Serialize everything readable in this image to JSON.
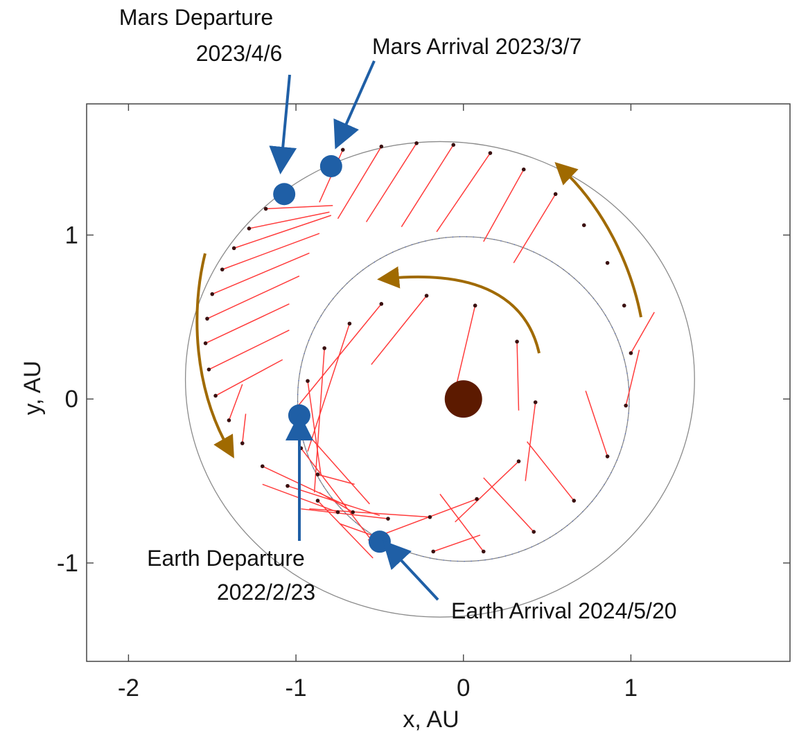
{
  "chart_data": {
    "type": "scatter",
    "title": "",
    "xlabel": "x, AU",
    "ylabel": "y, AU",
    "xlim": [
      -2.25,
      1.95
    ],
    "ylim": [
      -1.6,
      1.8
    ],
    "xticks": [
      -2,
      -1,
      0,
      1
    ],
    "yticks": [
      -1,
      0,
      1
    ],
    "xtick_labels": [
      "-2",
      "-1",
      "0",
      "1"
    ],
    "ytick_labels": [
      "-1",
      "0",
      "1"
    ],
    "grid": false,
    "sun": {
      "x": 0,
      "y": 0,
      "color": "#5c1a00"
    },
    "orbits": [
      {
        "body": "Earth",
        "center": [
          0,
          0
        ],
        "rx": 0.99,
        "ry": 0.99
      },
      {
        "body": "Mars",
        "center": [
          -0.14,
          0.12
        ],
        "rx": 1.52,
        "ry": 1.45
      }
    ],
    "positions_color": "#3a1010",
    "vectors_color": "#ff3b3b",
    "marker_color": "#1f5fa6",
    "arrow_color": "#a06a00",
    "inner_positions": [
      {
        "x": -0.93,
        "y": 0.11,
        "dx": 0.08,
        "dy": -0.58
      },
      {
        "x": -0.83,
        "y": 0.31,
        "dx": -0.06,
        "dy": -0.88
      },
      {
        "x": -0.68,
        "y": 0.46,
        "dx": -0.25,
        "dy": -0.78
      },
      {
        "x": -0.49,
        "y": 0.58,
        "dx": -0.52,
        "dy": -0.65
      },
      {
        "x": -0.22,
        "y": 0.63,
        "dx": -0.33,
        "dy": -0.42
      },
      {
        "x": 0.07,
        "y": 0.57,
        "dx": -0.12,
        "dy": -0.52
      },
      {
        "x": 0.32,
        "y": 0.35,
        "dx": 0.01,
        "dy": -0.42
      },
      {
        "x": 0.43,
        "y": -0.02,
        "dx": -0.06,
        "dy": -0.48
      },
      {
        "x": 0.33,
        "y": -0.38,
        "dx": -0.38,
        "dy": -0.37
      },
      {
        "x": 0.08,
        "y": -0.61,
        "dx": -0.65,
        "dy": -0.25
      },
      {
        "x": -0.2,
        "y": -0.72,
        "dx": -0.72,
        "dy": 0.05
      },
      {
        "x": -0.45,
        "y": -0.73,
        "dx": -0.52,
        "dy": 0.06
      },
      {
        "x": -0.66,
        "y": -0.69,
        "dx": -0.2,
        "dy": 0.12
      },
      {
        "x": -0.87,
        "y": -0.46,
        "dx": 0.22,
        "dy": -0.06
      },
      {
        "x": -0.96,
        "y": -0.18,
        "dx": 0.4,
        "dy": -0.46
      },
      {
        "x": -0.97,
        "y": -0.3,
        "dx": 0.42,
        "dy": -0.56
      },
      {
        "x": -0.87,
        "y": -0.62,
        "dx": 0.33,
        "dy": -0.35
      }
    ],
    "outer_positions": [
      {
        "x": -1.18,
        "y": 1.16,
        "dx": 0.4,
        "dy": 0.02
      },
      {
        "x": -1.28,
        "y": 1.04,
        "dx": 0.48,
        "dy": 0.1
      },
      {
        "x": -1.37,
        "y": 0.92,
        "dx": 0.58,
        "dy": 0.2
      },
      {
        "x": -1.44,
        "y": 0.79,
        "dx": 0.58,
        "dy": 0.22
      },
      {
        "x": -1.5,
        "y": 0.64,
        "dx": 0.58,
        "dy": 0.25
      },
      {
        "x": -1.53,
        "y": 0.49,
        "dx": 0.55,
        "dy": 0.26
      },
      {
        "x": -1.54,
        "y": 0.34,
        "dx": 0.5,
        "dy": 0.24
      },
      {
        "x": -1.52,
        "y": 0.18,
        "dx": 0.48,
        "dy": 0.24
      },
      {
        "x": -1.48,
        "y": 0.02,
        "dx": 0.4,
        "dy": 0.22
      },
      {
        "x": -1.4,
        "y": -0.13,
        "dx": 0.08,
        "dy": 0.22
      },
      {
        "x": -1.32,
        "y": -0.27,
        "dx": 0.02,
        "dy": 0.18
      },
      {
        "x": -1.2,
        "y": -0.41,
        "dx": 0.5,
        "dy": -0.24
      },
      {
        "x": -1.05,
        "y": -0.53,
        "dx": 0.55,
        "dy": -0.18
      },
      {
        "x": -0.72,
        "y": 1.52,
        "dx": -0.14,
        "dy": -0.32
      },
      {
        "x": -0.49,
        "y": 1.54,
        "dx": -0.26,
        "dy": -0.44
      },
      {
        "x": -0.28,
        "y": 1.56,
        "dx": -0.3,
        "dy": -0.48
      },
      {
        "x": -0.06,
        "y": 1.55,
        "dx": -0.31,
        "dy": -0.5
      },
      {
        "x": 0.16,
        "y": 1.5,
        "dx": -0.32,
        "dy": -0.48
      },
      {
        "x": 0.36,
        "y": 1.4,
        "dx": -0.24,
        "dy": -0.44
      },
      {
        "x": 0.55,
        "y": 1.25,
        "dx": -0.25,
        "dy": -0.42
      },
      {
        "x": 0.72,
        "y": 1.06,
        "dx": 0,
        "dy": 0
      },
      {
        "x": 0.86,
        "y": 0.83,
        "dx": 0,
        "dy": 0
      },
      {
        "x": 0.96,
        "y": 0.57,
        "dx": 0,
        "dy": 0
      },
      {
        "x": 1.0,
        "y": 0.28,
        "dx": 0.14,
        "dy": 0.25
      },
      {
        "x": 0.97,
        "y": -0.04,
        "dx": 0.08,
        "dy": 0.34
      },
      {
        "x": 0.86,
        "y": -0.35,
        "dx": -0.13,
        "dy": 0.4
      },
      {
        "x": 0.66,
        "y": -0.62,
        "dx": -0.28,
        "dy": 0.36
      },
      {
        "x": 0.42,
        "y": -0.81,
        "dx": -0.3,
        "dy": 0.33
      },
      {
        "x": 0.12,
        "y": -0.93,
        "dx": -0.26,
        "dy": 0.35
      },
      {
        "x": -0.18,
        "y": -0.93,
        "dx": 0.28,
        "dy": 0.1
      },
      {
        "x": -0.52,
        "y": -0.84,
        "dx": -0.22,
        "dy": 0.08
      },
      {
        "x": -0.75,
        "y": -0.69,
        "dx": -0.45,
        "dy": 0.17
      }
    ],
    "events": [
      {
        "label": "Mars Departure",
        "date": "2023/4/6",
        "x": -1.07,
        "y": 1.25
      },
      {
        "label": "Mars Arrival",
        "date": "2023/3/7",
        "x": -0.79,
        "y": 1.42
      },
      {
        "label": "Earth Departure",
        "date": "2022/2/23",
        "x": -0.98,
        "y": -0.1
      },
      {
        "label": "Earth Arrival",
        "date": "2024/5/20",
        "x": -0.5,
        "y": -0.87
      }
    ]
  },
  "annotations": {
    "mars_departure_line1": "Mars Departure",
    "mars_departure_line2": "2023/4/6",
    "mars_arrival": "Mars Arrival 2023/3/7",
    "earth_departure_line1": "Earth Departure",
    "earth_departure_line2": "2022/2/23",
    "earth_arrival": "Earth Arrival 2024/5/20"
  }
}
